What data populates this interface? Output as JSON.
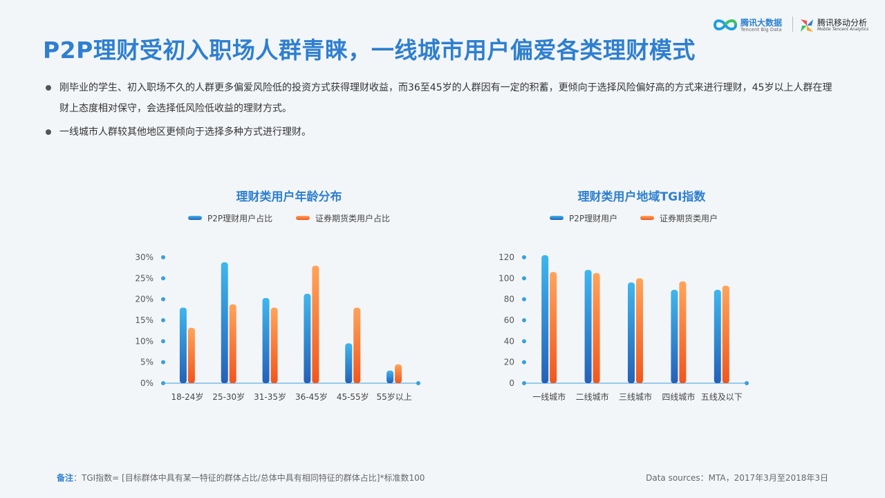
{
  "header": {
    "title": "P2P理财受初入职场人群青睐，一线城市用户偏爱各类理财模式",
    "logo_left": {
      "name": "腾讯大数据",
      "sub": "Tencent Big Data"
    },
    "logo_right": {
      "name": "腾讯移动分析",
      "sub": "Mobile Tencent Analytics"
    }
  },
  "bullets": [
    "刚毕业的学生、初入职场不久的人群更多偏爱风险低的投资方式获得理财收益，而36至45岁的人群因有一定的积蓄，更倾向于选择风险偏好高的方式来进行理财，45岁以上人群在理财上态度相对保守，会选择低风险低收益的理财方式。",
    "一线城市人群较其他地区更倾向于选择多种方式进行理财。"
  ],
  "colors": {
    "blue_top": "#3fb6ee",
    "blue_bottom": "#2461b8",
    "orange_top": "#ffa45a",
    "orange_bottom": "#f2561c",
    "axis": "#3a9ee0",
    "title": "#2e7fd0"
  },
  "chart_data": [
    {
      "type": "bar",
      "title": "理财类用户年龄分布",
      "categories": [
        "18-24岁",
        "25-30岁",
        "31-35岁",
        "36-45岁",
        "45-55岁",
        "55岁以上"
      ],
      "series": [
        {
          "name": "P2P理财用户占比",
          "values": [
            18,
            28.8,
            20.3,
            21.3,
            9.5,
            3
          ]
        },
        {
          "name": "证券期货类用户占比",
          "values": [
            13.2,
            18.8,
            18,
            28,
            18,
            4.5
          ]
        }
      ],
      "yticks": [
        "0%",
        "5%",
        "10%",
        "15%",
        "20%",
        "25%",
        "30%"
      ],
      "ylim": [
        0,
        30
      ],
      "legend": "top",
      "grid": false
    },
    {
      "type": "bar",
      "title": "理财类用户地域TGI指数",
      "categories": [
        "一线城市",
        "二线城市",
        "三线城市",
        "四线城市",
        "五线及以下"
      ],
      "series": [
        {
          "name": "P2P理财用户",
          "values": [
            122,
            108,
            96,
            89,
            89
          ]
        },
        {
          "name": "证券期货类用户",
          "values": [
            106,
            105,
            100,
            97,
            93
          ]
        }
      ],
      "yticks": [
        "0",
        "20",
        "40",
        "60",
        "80",
        "100",
        "120"
      ],
      "ylim": [
        0,
        120
      ],
      "legend": "top",
      "grid": false
    }
  ],
  "footer": {
    "note_label": "备注",
    "note_text": "：TGI指数= [目标群体中具有某一特征的群体占比/总体中具有相同特征的群体占比]*标准数100",
    "source": "Data sources：MTA，2017年3月至2018年3日"
  }
}
